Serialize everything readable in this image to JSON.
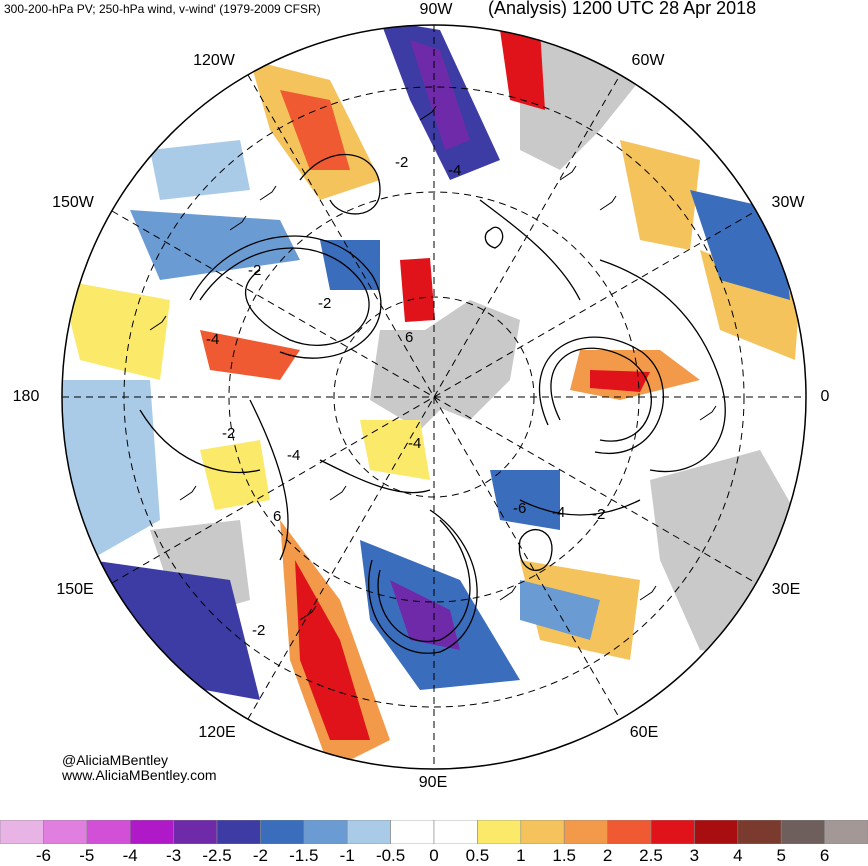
{
  "header": {
    "left_title": "300-200-hPa PV; 250-hPa wind, v-wind' (1979-2009 CFSR)",
    "right_title": "(Analysis) 1200 UTC 28 Apr 2018"
  },
  "longitude_labels": [
    "90W",
    "120W",
    "60W",
    "150W",
    "30W",
    "180",
    "0",
    "150E",
    "30E",
    "120E",
    "60E",
    "90E"
  ],
  "contour_labels": [
    "-2",
    "-4",
    "-2",
    "-2",
    "-4",
    "6",
    "-2",
    "-4",
    "-6",
    "-4",
    "-2",
    "6",
    "-2",
    "-4"
  ],
  "credits": {
    "twitter": "@AliciaMBentley",
    "website": "www.AliciaMBentley.com"
  },
  "colorbar": {
    "ticks": [
      "-6",
      "-5",
      "-4",
      "-3",
      "-2.5",
      "-2",
      "-1.5",
      "-1",
      "-0.5",
      "0",
      "0.5",
      "1",
      "1.5",
      "2",
      "2.5",
      "3",
      "4",
      "5",
      "6"
    ],
    "colors": [
      "#e8b4e6",
      "#e07fe0",
      "#d24fd8",
      "#b019c8",
      "#6f2aaa",
      "#3c3ca4",
      "#3b6dbd",
      "#6b9bd3",
      "#a9cbe8",
      "#ffffff",
      "#ffffff",
      "#fbe96a",
      "#f5c35c",
      "#f29a4a",
      "#ef5a32",
      "#e0131a",
      "#a80d0f",
      "#7a3a2e",
      "#6e5e5c",
      "#a49896"
    ]
  }
}
